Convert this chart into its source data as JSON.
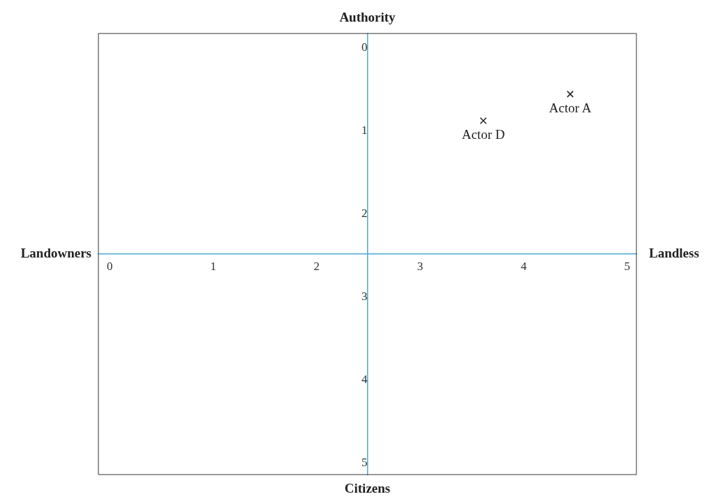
{
  "chart_data": {
    "type": "scatter",
    "xlim": [
      -0.11,
      5.09
    ],
    "ylim": [
      5.14,
      -0.17
    ],
    "xticks": [
      0,
      1,
      2,
      3,
      4,
      5
    ],
    "yticks": [
      0,
      1,
      2,
      3,
      4,
      5
    ],
    "grid": false,
    "legend": false,
    "marker": "cross",
    "annotations": [
      "Authority",
      "Citizens",
      "Landowners",
      "Landless"
    ],
    "series": [
      {
        "name": "Actor A",
        "color": "#222222",
        "x": [
          4.45
        ],
        "values": [
          0.56
        ]
      },
      {
        "name": "Actor D",
        "color": "#222222",
        "x": [
          3.61
        ],
        "values": [
          0.88
        ]
      }
    ]
  }
}
